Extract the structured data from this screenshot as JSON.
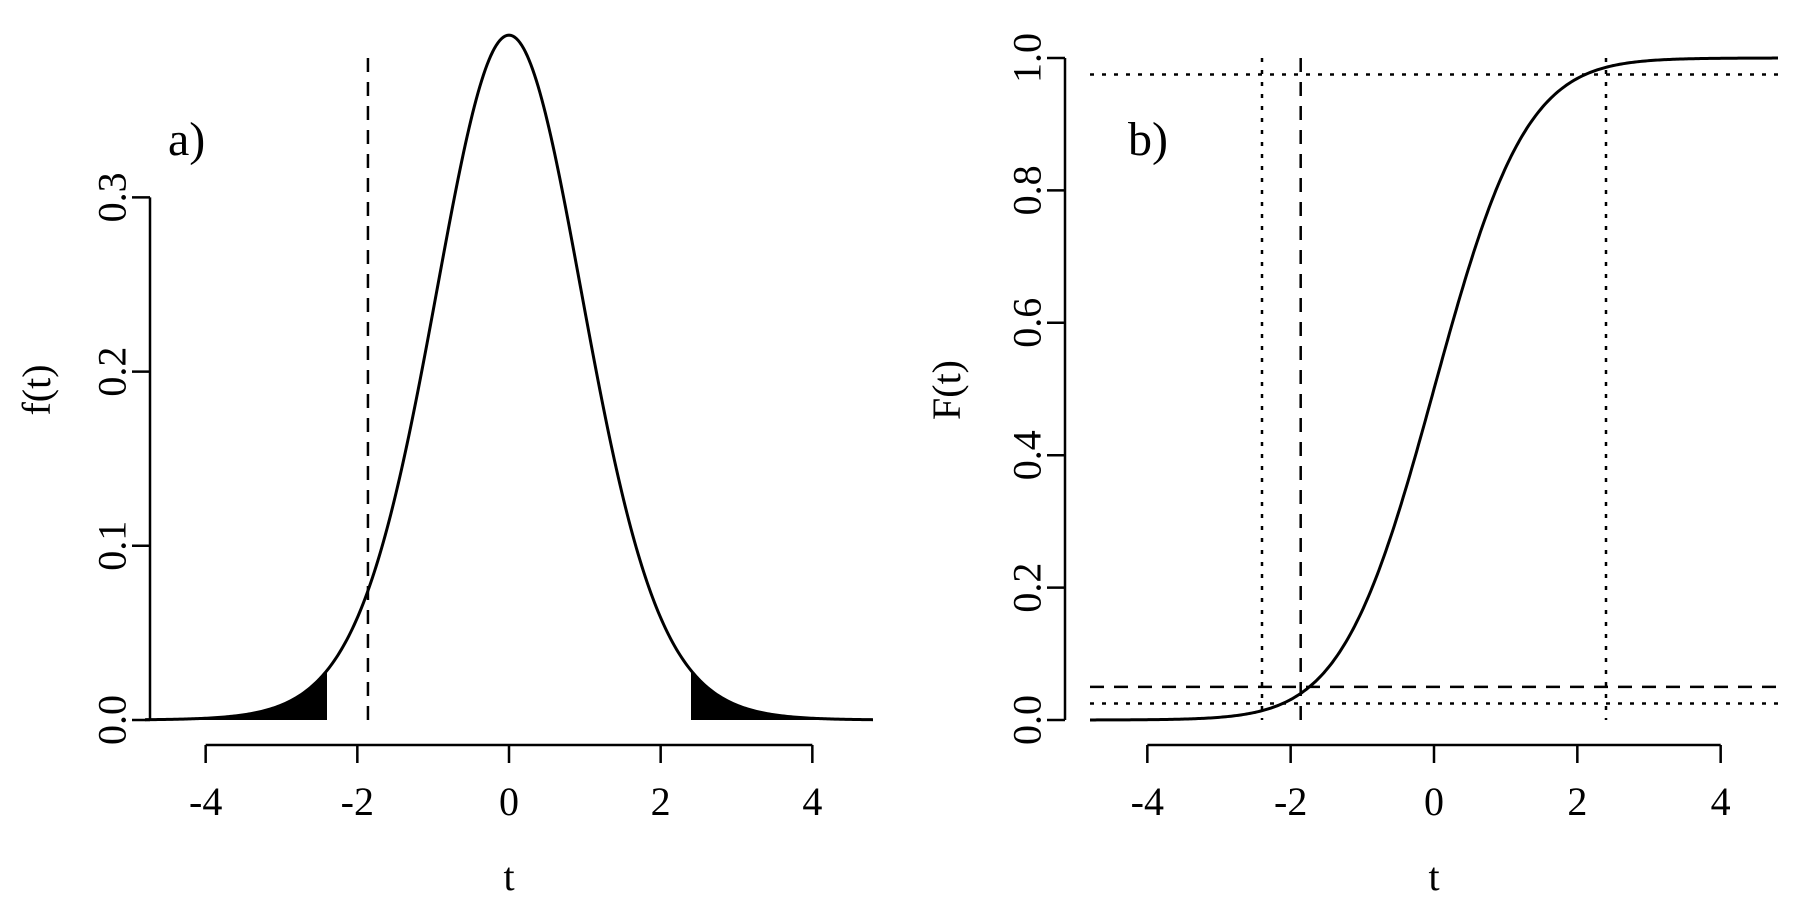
{
  "chart_data": [
    {
      "type": "line",
      "panel_label": "a)",
      "function": "t-distribution density",
      "xlabel": "t",
      "ylabel": "f(t)",
      "xlim": [
        -4.8,
        4.8
      ],
      "ylim": [
        0,
        0.38
      ],
      "x_ticks": [
        "-4",
        "-2",
        "0",
        "2",
        "4"
      ],
      "y_ticks": [
        "0.0",
        "0.1",
        "0.2",
        "0.3"
      ],
      "series": [
        {
          "style": "solid",
          "kind": "density",
          "degrees_of_freedom": 17
        }
      ],
      "shaded_tails": {
        "lower_max": -2.4,
        "upper_min": 2.4,
        "color": "#000000"
      },
      "vlines": [
        {
          "x": -1.86,
          "style": "dashed"
        }
      ],
      "grid": false
    },
    {
      "type": "line",
      "panel_label": "b)",
      "function": "t-distribution cumulative distribution",
      "xlabel": "t",
      "ylabel": "F(t)",
      "xlim": [
        -4.8,
        4.8
      ],
      "ylim": [
        0,
        1.0
      ],
      "x_ticks": [
        "-4",
        "-2",
        "0",
        "2",
        "4"
      ],
      "y_ticks": [
        "0.0",
        "0.2",
        "0.4",
        "0.6",
        "0.8",
        "1.0"
      ],
      "series": [
        {
          "style": "solid",
          "kind": "cdf",
          "degrees_of_freedom": 17
        }
      ],
      "vlines": [
        {
          "x": -2.4,
          "style": "dotted"
        },
        {
          "x": -1.86,
          "style": "dashed"
        },
        {
          "x": 2.4,
          "style": "dotted"
        }
      ],
      "hlines": [
        {
          "y": 0.975,
          "style": "dotted"
        },
        {
          "y": 0.05,
          "style": "dashed"
        },
        {
          "y": 0.025,
          "style": "dotted"
        }
      ],
      "grid": false
    }
  ]
}
